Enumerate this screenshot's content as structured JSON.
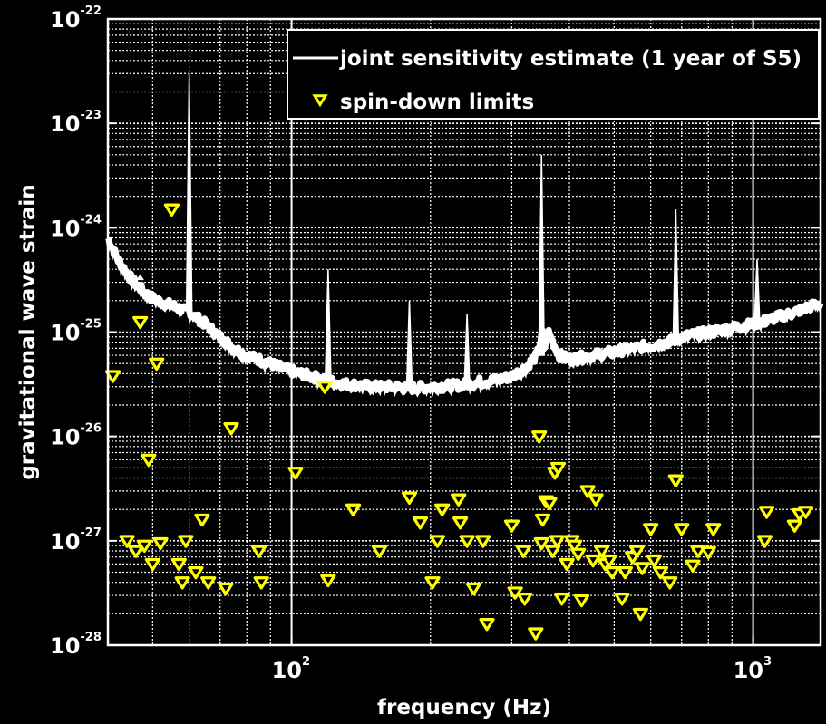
{
  "chart_data": {
    "type": "scatter",
    "title": "",
    "xlabel": "frequency (Hz)",
    "ylabel": "gravitational wave strain",
    "xscale": "log",
    "yscale": "log",
    "xlim": [
      40,
      1400
    ],
    "ylim": [
      1e-28,
      1e-22
    ],
    "grid": true,
    "legend_position": "top-right",
    "colors": {
      "background": "#000000",
      "curve": "#ffffff",
      "markers": "#ffff00",
      "grid": "#ffffff"
    },
    "x_ticks": [
      {
        "value": 100,
        "base": "10",
        "exp": "2"
      },
      {
        "value": 1000,
        "base": "10",
        "exp": "3"
      }
    ],
    "y_ticks": [
      {
        "value": 1e-22,
        "base": "10",
        "exp": "-22"
      },
      {
        "value": 1e-23,
        "base": "10",
        "exp": "-23"
      },
      {
        "value": 1e-24,
        "base": "10",
        "exp": "-24"
      },
      {
        "value": 1e-25,
        "base": "10",
        "exp": "-25"
      },
      {
        "value": 1e-26,
        "base": "10",
        "exp": "-26"
      },
      {
        "value": 1e-27,
        "base": "10",
        "exp": "-27"
      },
      {
        "value": 1e-28,
        "base": "10",
        "exp": "-28"
      }
    ],
    "series": [
      {
        "name": "joint sensitivity estimate (1 year of S5)",
        "type": "line",
        "x": [
          40,
          42,
          45,
          48,
          50,
          53,
          55,
          57,
          58,
          59,
          60,
          62,
          65,
          70,
          75,
          80,
          90,
          100,
          110,
          120,
          130,
          150,
          170,
          180,
          200,
          230,
          250,
          280,
          300,
          320,
          340,
          350,
          360,
          380,
          400,
          450,
          500,
          550,
          600,
          650,
          680,
          700,
          800,
          900,
          1000,
          1100,
          1200,
          1300,
          1400
        ],
        "y": [
          8e-25,
          5e-25,
          3.2e-25,
          2.4e-25,
          2.1e-25,
          1.9e-25,
          1.8e-25,
          1.7e-25,
          1.6e-25,
          3e-23,
          1.6e-25,
          1.4e-25,
          1.2e-25,
          9e-26,
          7e-26,
          6e-26,
          5e-26,
          4.2e-26,
          3.8e-26,
          3.4e-26,
          3.2e-26,
          3e-26,
          3e-26,
          2.9e-26,
          3e-26,
          3.1e-26,
          3.3e-26,
          3.5e-26,
          3.8e-26,
          4.5e-26,
          6e-26,
          5e-24,
          1e-25,
          6e-26,
          5.5e-26,
          6e-26,
          6.5e-26,
          7e-26,
          7.5e-26,
          8e-26,
          8.5e-26,
          9e-26,
          1e-25,
          1.1e-25,
          1.2e-25,
          1.35e-25,
          1.5e-25,
          1.7e-25,
          1.9e-25
        ],
        "spikes": [
          {
            "x": 47,
            "y": 3.5e-25
          },
          {
            "x": 60,
            "y": 3e-23
          },
          {
            "x": 120,
            "y": 4e-25
          },
          {
            "x": 180,
            "y": 2e-25
          },
          {
            "x": 240,
            "y": 1.5e-25
          },
          {
            "x": 348,
            "y": 5e-24
          },
          {
            "x": 680,
            "y": 1.5e-24
          },
          {
            "x": 1020,
            "y": 5e-25
          }
        ]
      },
      {
        "name": "spin-down limits",
        "type": "scatter",
        "x": [
          41,
          44,
          46,
          47,
          48,
          49,
          50,
          51,
          52,
          55,
          57,
          58,
          59,
          62,
          64,
          66,
          72,
          74,
          85,
          86,
          102,
          118,
          120,
          136,
          155,
          180,
          190,
          202,
          207,
          212,
          230,
          232,
          240,
          248,
          260,
          265,
          300,
          305,
          318,
          320,
          338,
          344,
          348,
          350,
          356,
          362,
          368,
          372,
          376,
          378,
          385,
          395,
          405,
          410,
          418,
          425,
          438,
          450,
          456,
          470,
          478,
          488,
          495,
          520,
          528,
          548,
          560,
          570,
          575,
          600,
          610,
          630,
          660,
          680,
          700,
          740,
          760,
          800,
          820,
          1060,
          1070,
          1230,
          1260,
          1300
        ],
        "y": [
          3.8e-26,
          1e-27,
          8e-28,
          1.25e-25,
          9e-28,
          6e-27,
          6e-28,
          5e-26,
          9.5e-28,
          1.5e-24,
          6e-28,
          4e-28,
          1e-27,
          5e-28,
          1.6e-27,
          4e-28,
          3.5e-28,
          1.2e-26,
          8e-28,
          4e-28,
          4.5e-27,
          3e-26,
          4.2e-28,
          2e-27,
          8e-28,
          2.6e-27,
          1.5e-27,
          4e-28,
          1e-27,
          2e-27,
          2.5e-27,
          1.5e-27,
          1e-27,
          3.5e-28,
          1e-27,
          1.6e-28,
          1.4e-27,
          3.2e-28,
          8e-28,
          2.8e-28,
          1.3e-28,
          1e-26,
          9.5e-28,
          1.6e-27,
          2.4e-27,
          2.3e-27,
          8e-28,
          4.5e-27,
          1e-27,
          5e-27,
          2.8e-28,
          6e-28,
          1e-27,
          9e-28,
          7.5e-28,
          2.7e-28,
          3e-27,
          6.5e-28,
          2.5e-27,
          8e-28,
          6e-28,
          6.5e-28,
          5e-28,
          2.8e-28,
          5e-28,
          7e-28,
          8e-28,
          2e-28,
          5.5e-28,
          1.3e-27,
          6.5e-28,
          5e-28,
          4e-28,
          3.8e-27,
          1.3e-27,
          5.8e-28,
          8e-28,
          7.8e-28,
          1.3e-27,
          1e-27,
          1.9e-27,
          1.4e-27,
          1.8e-27,
          1.9e-27
        ]
      }
    ]
  }
}
